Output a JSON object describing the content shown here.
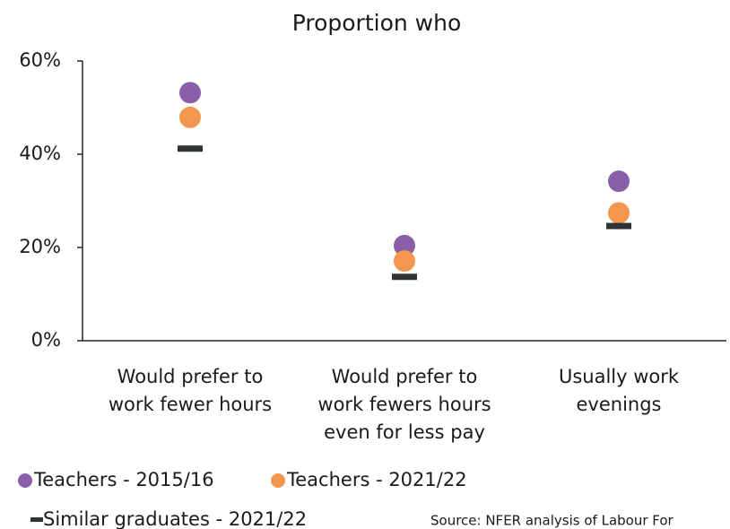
{
  "chart_data": {
    "type": "dot",
    "title": "Proportion who",
    "categories": [
      "Would prefer to\nwork fewer hours",
      "Would prefer to\nwork fewers hours\neven for less pay",
      "Usually work\nevenings"
    ],
    "series": [
      {
        "name": "Teachers - 2015/16",
        "color": "#8b5ea8",
        "marker": "circle",
        "values": [
          53.2,
          20.4,
          34.2
        ]
      },
      {
        "name": "Teachers - 2021/22",
        "color": "#f5964f",
        "marker": "circle",
        "values": [
          47.9,
          17.1,
          27.4
        ]
      },
      {
        "name": "Similar graduates - 2021/22",
        "color": "#2f3435",
        "marker": "dash",
        "values": [
          41.2,
          13.7,
          24.6
        ]
      }
    ],
    "ylim": [
      0,
      60
    ],
    "yticks": [
      {
        "value": 0,
        "label": "0%"
      },
      {
        "value": 20,
        "label": "20%"
      },
      {
        "value": 40,
        "label": "40%"
      },
      {
        "value": 60,
        "label": "60%"
      }
    ],
    "source": "Source: NFER analysis of Labour For"
  }
}
